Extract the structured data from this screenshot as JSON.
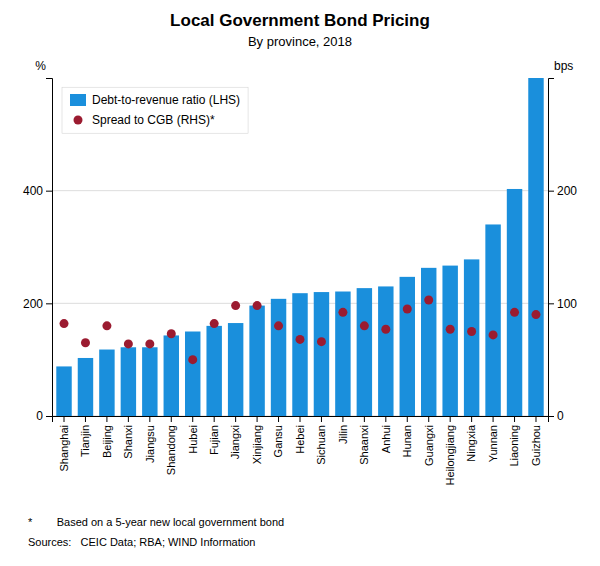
{
  "chart_data": {
    "type": "bar",
    "title": "Local Government Bond Pricing",
    "subtitle": "By province, 2018",
    "categories": [
      "Shanghai",
      "Tianjin",
      "Beijing",
      "Shanxi",
      "Jiangsu",
      "Shandong",
      "Hubei",
      "Fujian",
      "Jiangxi",
      "Xinjiang",
      "Gansu",
      "Hebei",
      "Sichuan",
      "Jilin",
      "Shaanxi",
      "Anhui",
      "Hunan",
      "Guangxi",
      "Heilongjiang",
      "Ningxia",
      "Yunnan",
      "Liaoning",
      "Guizhou"
    ],
    "series": [
      {
        "name": "Debt-to-revenue ratio (LHS)",
        "type": "bar",
        "color": "#1a8fdc",
        "values": [
          88,
          103,
          118,
          122,
          122,
          143,
          150,
          160,
          165,
          196,
          208,
          218,
          220,
          221,
          227,
          230,
          247,
          263,
          267,
          278,
          340,
          403,
          600
        ]
      },
      {
        "name": "Spread to CGB (RHS)*",
        "type": "scatter",
        "color": "#9b1b30",
        "axis": "y2",
        "values": [
          82,
          65,
          80,
          64,
          64,
          73,
          50,
          82,
          98,
          98,
          80,
          68,
          66,
          92,
          80,
          77,
          95,
          103,
          77,
          75,
          72,
          92,
          90
        ]
      }
    ],
    "y_label": "%",
    "y2_label": "bps",
    "ylim": [
      0,
      600
    ],
    "yticks": [
      0,
      200,
      400
    ],
    "y2lim": [
      0,
      300
    ],
    "y2ticks": [
      0,
      100,
      200
    ],
    "grid": true,
    "legend": "upper left",
    "annotations": [
      "*        Based on a 5-year new local government bond",
      "Sources:   CEIC Data; RBA; WIND Information"
    ]
  }
}
